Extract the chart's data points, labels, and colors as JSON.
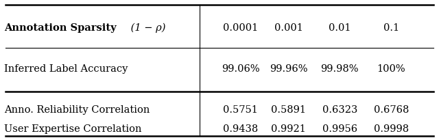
{
  "header_bold": "Annotation Sparsity",
  "header_normal": " (1 − ρ)",
  "col_values": [
    "0.0001",
    "0.001",
    "0.01",
    "0.1"
  ],
  "rows": [
    {
      "label": "Inferred Label Accuracy",
      "values": [
        "99.06%",
        "99.96%",
        "99.98%",
        "100%"
      ]
    },
    {
      "label": "Anno. Reliability Correlation",
      "values": [
        "0.5751",
        "0.5891",
        "0.6323",
        "0.6768"
      ]
    },
    {
      "label": "User Expertise Correlation",
      "values": [
        "0.9438",
        "0.9921",
        "0.9956",
        "0.9998"
      ]
    }
  ],
  "background_color": "#ffffff",
  "text_color": "#000000",
  "font_size": 10.5
}
